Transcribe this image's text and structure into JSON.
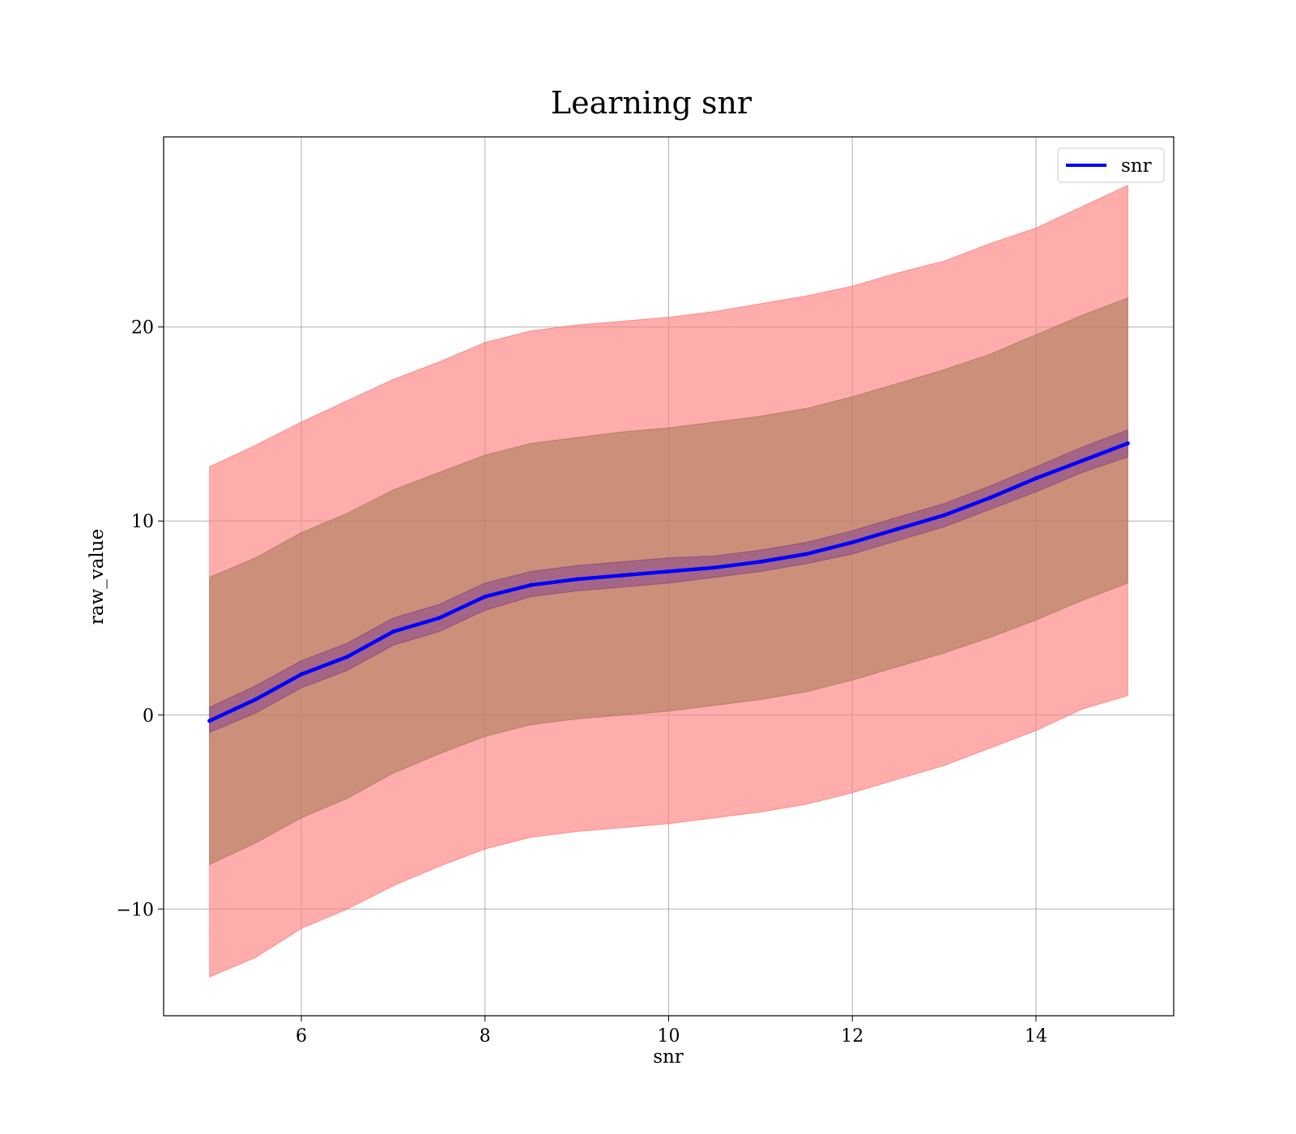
{
  "chart_data": {
    "type": "line",
    "title": "Learning snr",
    "xlabel": "snr",
    "ylabel": "raw_value",
    "xlim": [
      4.5,
      15.5
    ],
    "ylim": [
      -15.5,
      29.8
    ],
    "xticks": [
      6,
      8,
      10,
      12,
      14
    ],
    "yticks": [
      -10,
      0,
      10,
      20
    ],
    "xtick_labels": [
      "6",
      "8",
      "10",
      "12",
      "14"
    ],
    "ytick_labels": [
      "−10",
      "0",
      "10",
      "20"
    ],
    "grid": true,
    "legend": {
      "placement": "top-right",
      "entries": [
        "snr"
      ]
    },
    "colors": {
      "line": "#0000ff",
      "outer_band": "#ff8080",
      "middle_band": "#b08060",
      "inner_band": "#8a4a8a"
    },
    "x": [
      5,
      5.5,
      6,
      6.5,
      7,
      7.5,
      8,
      8.5,
      9,
      9.5,
      10,
      10.5,
      11,
      11.5,
      12,
      12.5,
      13,
      13.5,
      14,
      14.5,
      15
    ],
    "series": [
      {
        "name": "snr",
        "values": [
          -0.3,
          0.8,
          2.1,
          3.0,
          4.3,
          5.0,
          6.1,
          6.7,
          7.0,
          7.2,
          7.4,
          7.6,
          7.9,
          8.3,
          8.9,
          9.6,
          10.3,
          11.2,
          12.2,
          13.1,
          14.0
        ]
      }
    ],
    "bands": [
      {
        "lower": [
          -13.5,
          -12.5,
          -11.0,
          -10.0,
          -8.8,
          -7.8,
          -6.9,
          -6.3,
          -6.0,
          -5.8,
          -5.6,
          -5.3,
          -5.0,
          -4.6,
          -4.0,
          -3.3,
          -2.6,
          -1.7,
          -0.8,
          0.3,
          1.0
        ],
        "upper": [
          12.8,
          13.9,
          15.1,
          16.2,
          17.3,
          18.2,
          19.2,
          19.8,
          20.1,
          20.3,
          20.5,
          20.8,
          21.2,
          21.6,
          22.1,
          22.8,
          23.4,
          24.3,
          25.1,
          26.2,
          27.3
        ]
      },
      {
        "lower": [
          -7.7,
          -6.6,
          -5.3,
          -4.3,
          -3.0,
          -2.0,
          -1.1,
          -0.5,
          -0.2,
          0.0,
          0.2,
          0.5,
          0.8,
          1.2,
          1.8,
          2.5,
          3.2,
          4.0,
          4.9,
          5.9,
          6.8
        ],
        "upper": [
          7.1,
          8.1,
          9.4,
          10.4,
          11.6,
          12.5,
          13.4,
          14.0,
          14.3,
          14.6,
          14.8,
          15.1,
          15.4,
          15.8,
          16.4,
          17.1,
          17.8,
          18.6,
          19.6,
          20.6,
          21.5
        ]
      },
      {
        "lower": [
          -0.9,
          0.1,
          1.4,
          2.3,
          3.6,
          4.3,
          5.4,
          6.1,
          6.4,
          6.6,
          6.8,
          7.1,
          7.4,
          7.8,
          8.3,
          9.0,
          9.7,
          10.6,
          11.5,
          12.5,
          13.3
        ],
        "upper": [
          0.4,
          1.5,
          2.8,
          3.7,
          5.0,
          5.7,
          6.8,
          7.4,
          7.7,
          7.9,
          8.1,
          8.2,
          8.5,
          8.9,
          9.5,
          10.2,
          10.9,
          11.8,
          12.8,
          13.8,
          14.7
        ]
      }
    ]
  }
}
